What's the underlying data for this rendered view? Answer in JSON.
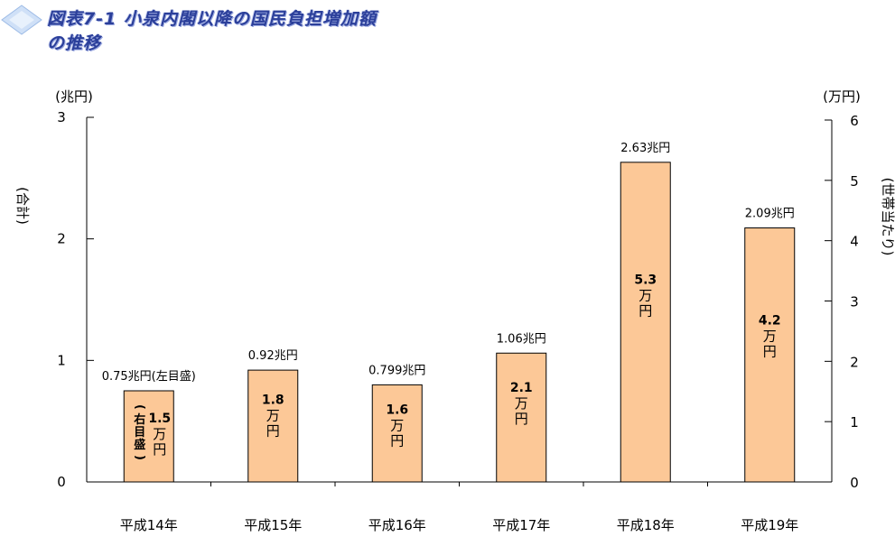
{
  "title": "図表7-1 小泉内閣以降の国民負担増加額の推移",
  "chart_data": {
    "type": "bar",
    "categories": [
      "平成14年",
      "平成15年",
      "平成16年",
      "平成17年",
      "平成18年",
      "平成19年"
    ],
    "values": [
      0.75,
      0.92,
      0.799,
      1.06,
      2.63,
      2.09
    ],
    "series": [
      {
        "name": "合計",
        "unit": "兆円",
        "values": [
          0.75,
          0.92,
          0.799,
          1.06,
          2.63,
          2.09
        ]
      },
      {
        "name": "世帯当たり",
        "unit": "万円",
        "values": [
          1.5,
          1.8,
          1.6,
          2.1,
          5.3,
          4.2
        ]
      }
    ],
    "top_labels": [
      "0.75兆円(左目盛)",
      "0.92兆円",
      "0.799兆円",
      "1.06兆円",
      "2.63兆円",
      "2.09兆円"
    ],
    "inner_values": [
      "1.5",
      "1.8",
      "1.6",
      "2.1",
      "5.3",
      "4.2"
    ],
    "inner_unit_chars": [
      "万",
      "円"
    ],
    "inner_note_chars": [
      "(",
      "右",
      "目",
      "盛",
      ")"
    ],
    "left_axis": {
      "unit": "(兆円)",
      "label": "(合計)",
      "ylim": [
        0,
        3
      ],
      "ticks": [
        0,
        1,
        2,
        3
      ]
    },
    "right_axis": {
      "unit": "(万円)",
      "label": "(世帯当たり)",
      "ylim": [
        0,
        6
      ],
      "ticks": [
        0,
        1,
        2,
        3,
        4,
        5,
        6
      ]
    },
    "bar_color": "#fcc897",
    "grid": false
  }
}
